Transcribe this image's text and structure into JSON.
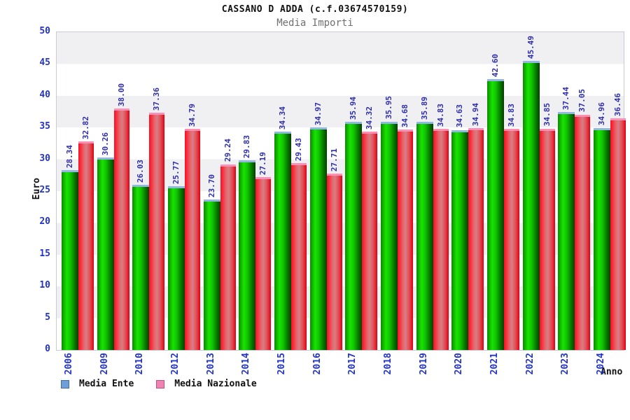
{
  "title": "CASSANO D ADDA (c.f.03674570159)",
  "subtitle": "Media Importi",
  "chart_data": {
    "type": "bar",
    "title": "CASSANO D ADDA (c.f.03674570159)",
    "subtitle": "Media Importi",
    "xlabel": "Anno",
    "ylabel": "Euro",
    "ylim": [
      0,
      50
    ],
    "yticks": [
      0,
      5,
      10,
      15,
      20,
      25,
      30,
      35,
      40,
      45,
      50
    ],
    "grid": "horizontal-bands",
    "legend_position": "bottom-left",
    "categories": [
      "2006",
      "2009",
      "2010",
      "2012",
      "2013",
      "2014",
      "2015",
      "2016",
      "2017",
      "2018",
      "2019",
      "2020",
      "2021",
      "2022",
      "2023",
      "2024"
    ],
    "series": [
      {
        "name": "Media Ente",
        "color": "#0fc400",
        "legend_swatch": "#6f9fd8",
        "values": [
          28.34,
          30.26,
          26.03,
          25.77,
          23.7,
          29.83,
          34.34,
          34.97,
          35.94,
          35.95,
          35.89,
          34.63,
          42.6,
          45.49,
          37.44,
          34.96
        ]
      },
      {
        "name": "Media Nazionale",
        "color": "#e4454f",
        "legend_swatch": "#f083b1",
        "values": [
          32.82,
          38.0,
          37.36,
          34.79,
          29.24,
          27.19,
          29.43,
          27.71,
          34.32,
          34.68,
          34.83,
          34.94,
          34.83,
          34.85,
          37.05,
          36.46
        ]
      }
    ]
  },
  "legend": {
    "items": [
      {
        "label": "Media Ente"
      },
      {
        "label": "Media Nazionale"
      }
    ]
  },
  "colors": {
    "value_label": "#2e2eae",
    "tick_label": "#2233cc",
    "band": "#f0f0f2",
    "green_main": "#0fc400",
    "green_cap": "#93b7e3",
    "red_main": "#e4454f",
    "red_cap": "#ff8fb4"
  }
}
